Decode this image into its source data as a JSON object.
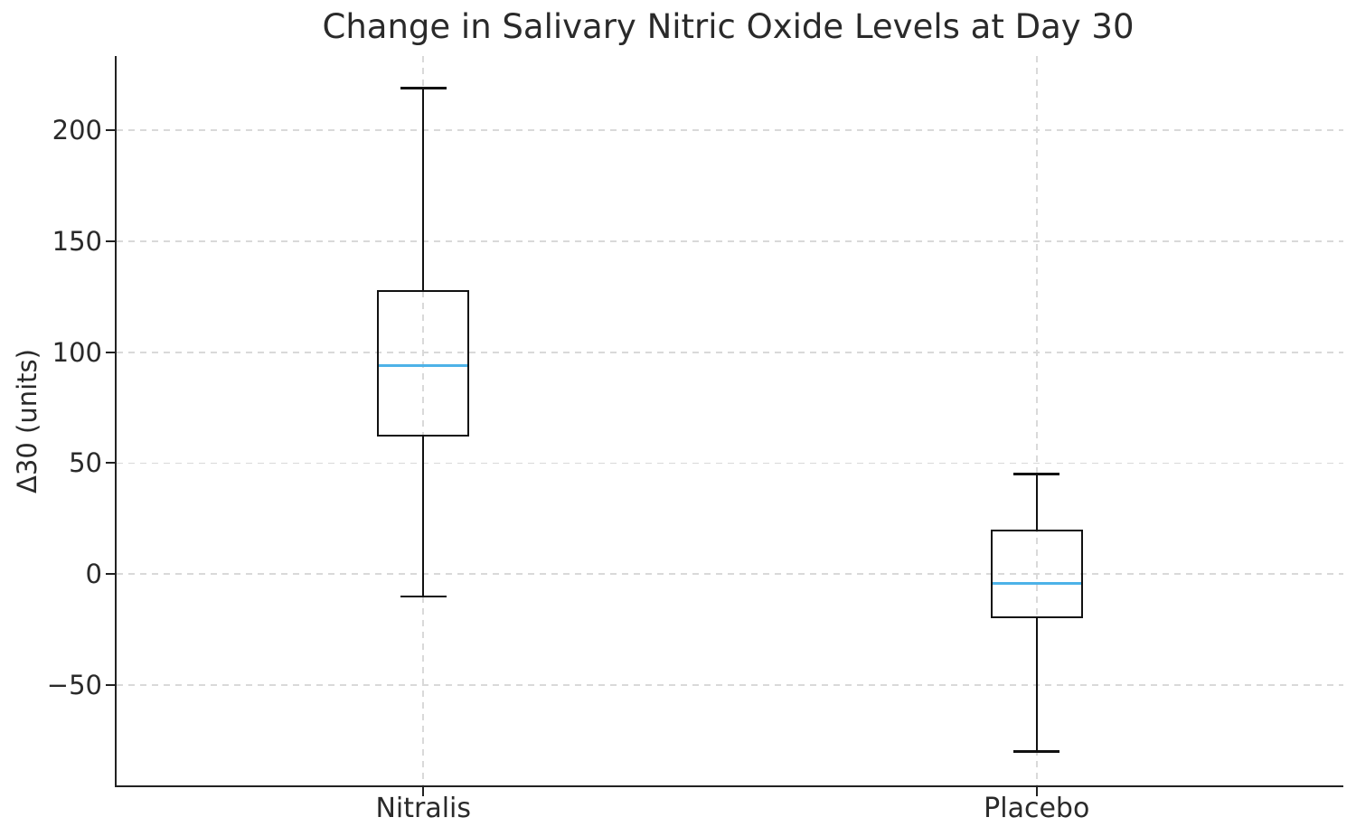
{
  "title": "Change in Salivary Nitric Oxide Levels at Day 30",
  "chart_data": {
    "type": "box",
    "title": "Change in Salivary Nitric Oxide Levels at Day 30",
    "xlabel": "",
    "ylabel": "Δ30 (units)",
    "categories": [
      "Nitralis",
      "Placebo"
    ],
    "series": [
      {
        "name": "Nitralis",
        "whisker_low": -10,
        "q1": 62,
        "median": 94,
        "q3": 128,
        "whisker_high": 219
      },
      {
        "name": "Placebo",
        "whisker_low": -80,
        "q1": -20,
        "median": -4,
        "q3": 20,
        "whisker_high": 45
      }
    ],
    "yticks": [
      200,
      150,
      100,
      50,
      0,
      -50
    ],
    "ytick_labels": [
      "200",
      "150",
      "100",
      "50",
      "0",
      "−50"
    ],
    "ylim": [
      -95.2,
      233.4
    ],
    "grid": {
      "horizontal": true,
      "vertical": true,
      "style": "dashed"
    },
    "legend": "none",
    "colors": {
      "median": "#4db2e8",
      "box_line": "#111111",
      "grid": "#d9d9d9",
      "spine": "#222222",
      "text": "#2a2a2a"
    }
  }
}
